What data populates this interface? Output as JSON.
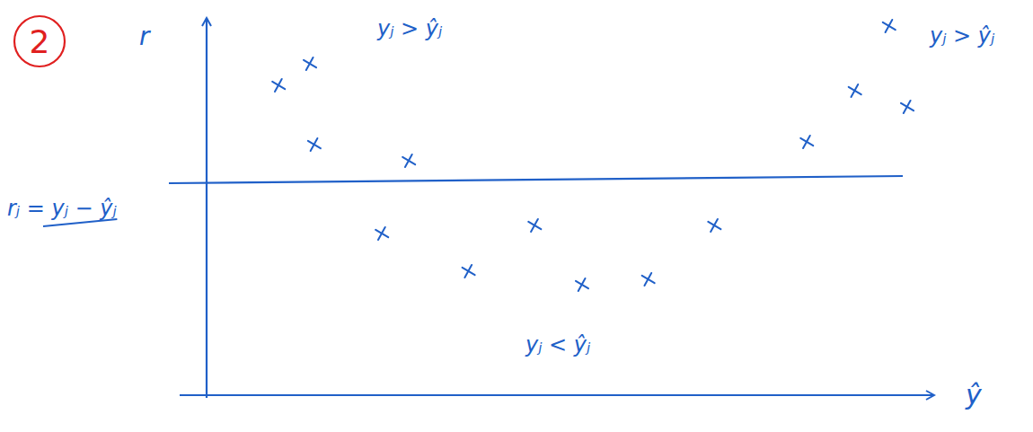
{
  "chart_data": {
    "type": "scatter",
    "title": "2",
    "xlabel": "ŷ",
    "ylabel": "r",
    "x": [
      9.9,
      14.2,
      14.8,
      27.8,
      24.1,
      45.1,
      36.0,
      51.6,
      60.7,
      69.8,
      82.5,
      89.1,
      96.3,
      93.8
    ],
    "values": [
      3.5,
      4.3,
      1.3,
      0.7,
      -2.0,
      -1.7,
      -3.4,
      -3.9,
      -3.7,
      -1.7,
      1.4,
      3.3,
      2.7,
      5.7
    ],
    "hline": 0,
    "xlim": [
      0,
      100
    ],
    "ylim": [
      -8,
      6
    ],
    "tick_labels": false,
    "grid": false,
    "marker": "x",
    "color": "#2060c8",
    "annotations": [
      "yⱼ > ŷⱼ",
      "yⱼ > ŷⱼ",
      "yⱼ < ŷⱼ",
      "rⱼ = yⱼ − ŷⱼ"
    ]
  }
}
